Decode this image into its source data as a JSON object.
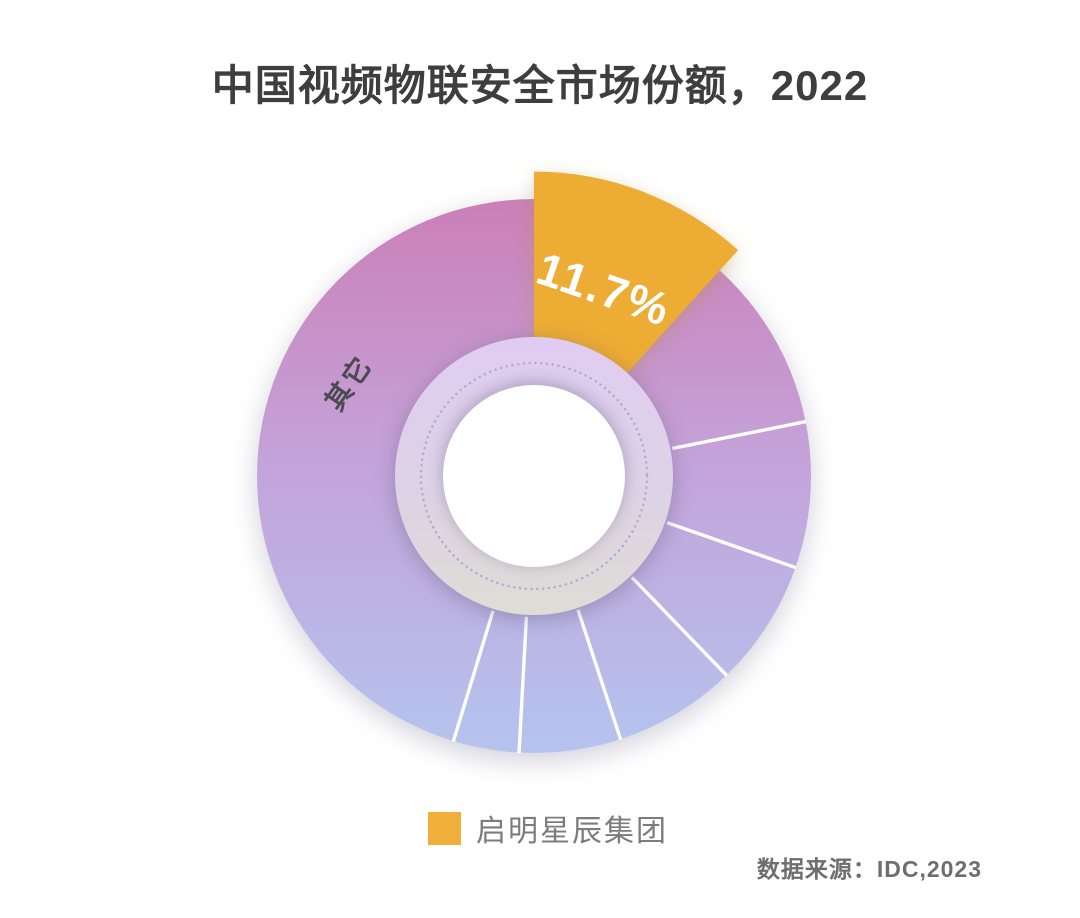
{
  "page": {
    "background": "#FFFFFF"
  },
  "title": "中国视频物联安全市场份额，2022",
  "source_note": "数据来源：IDC,2023",
  "legend": {
    "swatch_color": "#EFAF38",
    "label": "启明星辰集团",
    "position": "bottom"
  },
  "chart_data": {
    "type": "pie",
    "donut": true,
    "title": "中国视频物联安全市场份额，2022",
    "unit": "%",
    "slices": [
      {
        "name": "启明星辰集团",
        "value_pct": 11.7,
        "label": "11.7%",
        "color": "#EDAC33",
        "start_deg": 0,
        "end_deg": 42.1,
        "highlighted": true,
        "exploded_radius": true
      },
      {
        "name": "其它",
        "value_pct": 88.3,
        "start_deg": 42.1,
        "end_deg": 360,
        "gradient": {
          "top": "#CB80B7",
          "middle": "#C4A3DA",
          "bottom": "#B5C4EF"
        },
        "divider_angles_deg": [
          78.7,
          109.3,
          136.0,
          161.8,
          183.1,
          196.9
        ],
        "estimated_sub_segments_pct": [
          10.2,
          8.5,
          7.4,
          7.2,
          5.9,
          3.8,
          45.3
        ]
      }
    ],
    "labels_visible": [
      "11.7%",
      "其它"
    ],
    "legend_entries": [
      "启明星辰集团"
    ],
    "source": "数据来源：IDC,2023",
    "legend_position": "bottom"
  }
}
